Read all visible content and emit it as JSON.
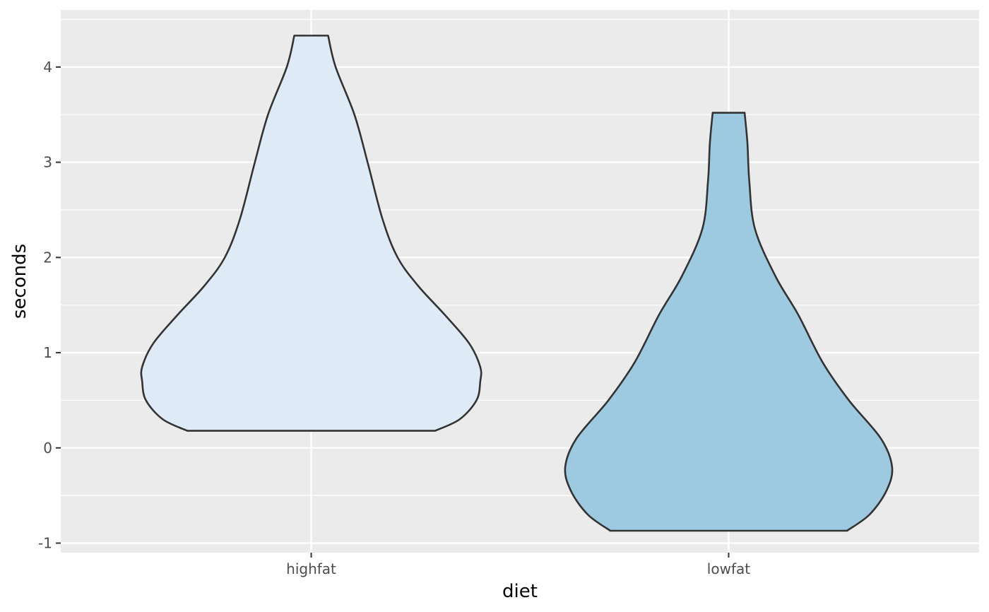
{
  "chart_data": {
    "type": "violin",
    "xlabel": "diet",
    "ylabel": "seconds",
    "categories": [
      "highfat",
      "lowfat"
    ],
    "ylim": [
      -1.1,
      4.6
    ],
    "yticks": [
      -1,
      0,
      1,
      2,
      3,
      4
    ],
    "ytick_labels": [
      "-1",
      "0",
      "1",
      "2",
      "3",
      "4"
    ],
    "grid": true,
    "legend": "none",
    "colors": {
      "panel": "#ebebeb",
      "grid": "#ffffff",
      "outline": "#333333",
      "highfat": "#deebf7",
      "lowfat": "#9ecae1"
    },
    "violins": [
      {
        "category": "highfat",
        "min": 0.18,
        "max": 4.33,
        "profile": [
          {
            "y": 0.18,
            "w": 0.66
          },
          {
            "y": 0.3,
            "w": 0.79
          },
          {
            "y": 0.5,
            "w": 0.88
          },
          {
            "y": 0.7,
            "w": 0.9
          },
          {
            "y": 0.85,
            "w": 0.9
          },
          {
            "y": 1.1,
            "w": 0.84
          },
          {
            "y": 1.4,
            "w": 0.71
          },
          {
            "y": 1.7,
            "w": 0.57
          },
          {
            "y": 2.0,
            "w": 0.46
          },
          {
            "y": 2.4,
            "w": 0.38
          },
          {
            "y": 3.0,
            "w": 0.3
          },
          {
            "y": 3.5,
            "w": 0.23
          },
          {
            "y": 4.0,
            "w": 0.13
          },
          {
            "y": 4.33,
            "w": 0.09
          }
        ]
      },
      {
        "category": "lowfat",
        "min": -0.87,
        "max": 3.52,
        "profile": [
          {
            "y": -0.87,
            "w": 0.63
          },
          {
            "y": -0.7,
            "w": 0.75
          },
          {
            "y": -0.45,
            "w": 0.84
          },
          {
            "y": -0.2,
            "w": 0.87
          },
          {
            "y": 0.1,
            "w": 0.81
          },
          {
            "y": 0.5,
            "w": 0.64
          },
          {
            "y": 0.9,
            "w": 0.5
          },
          {
            "y": 1.4,
            "w": 0.37
          },
          {
            "y": 1.8,
            "w": 0.25
          },
          {
            "y": 2.3,
            "w": 0.14
          },
          {
            "y": 2.8,
            "w": 0.11
          },
          {
            "y": 3.2,
            "w": 0.1
          },
          {
            "y": 3.52,
            "w": 0.085
          }
        ]
      }
    ]
  }
}
